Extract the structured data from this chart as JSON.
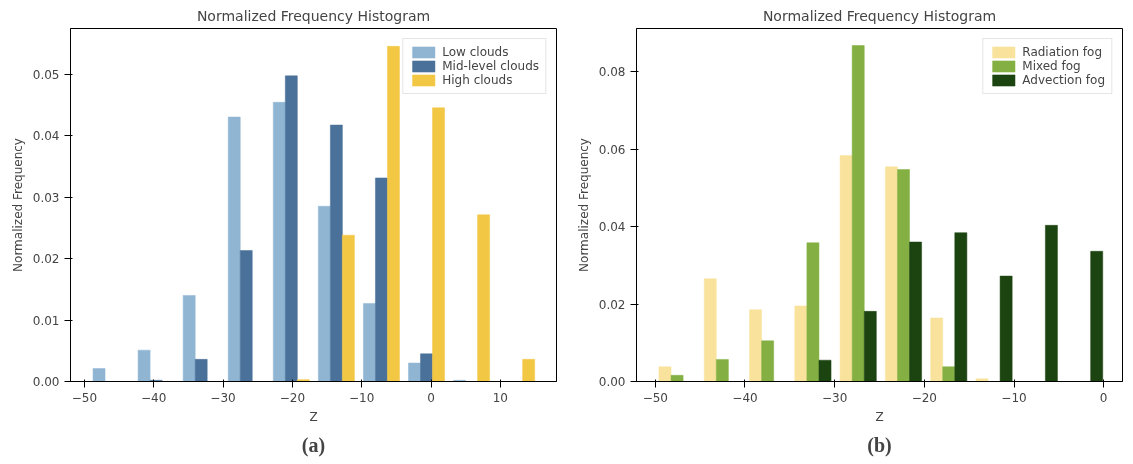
{
  "chart_data": [
    {
      "type": "histogram",
      "title": "Normalized Frequency Histogram",
      "xlabel": "Z",
      "ylabel": "Normalized Frequency",
      "annotations": [
        "(a)"
      ],
      "bins": [
        -49.4,
        -42.9,
        -36.4,
        -29.9,
        -23.4,
        -16.9,
        -10.4,
        -3.9,
        2.6,
        9.1,
        15.6
      ],
      "series": [
        {
          "name": "Low clouds",
          "color": "#8fb5d3",
          "values": [
            0.0021,
            0.0051,
            0.014,
            0.043,
            0.0454,
            0.0285,
            0.0127,
            0.003,
            0.0002,
            0
          ]
        },
        {
          "name": "Mid-level clouds",
          "color": "#4a7199",
          "values": [
            0,
            0.0002,
            0.0036,
            0.0213,
            0.0497,
            0.0417,
            0.0331,
            0.0045,
            0,
            0
          ]
        },
        {
          "name": "High clouds",
          "color": "#f2c744",
          "values": [
            0,
            0,
            0,
            0,
            0.0003,
            0.0238,
            0.0545,
            0.0445,
            0.0271,
            0.0036
          ]
        }
      ],
      "xlim": [
        -52.0,
        18.1
      ],
      "ylim": [
        0,
        0.0574
      ],
      "xticks": [
        {
          "value": -50,
          "label": "−50"
        },
        {
          "value": -40,
          "label": "−40"
        },
        {
          "value": -30,
          "label": "−30"
        },
        {
          "value": -20,
          "label": "−20"
        },
        {
          "value": -10,
          "label": "−10"
        },
        0,
        10
      ],
      "yticks": [
        {
          "value": 0,
          "label": "0.00"
        },
        0.01,
        0.02,
        0.03,
        0.04,
        0.05
      ],
      "grid": false,
      "legend": "top right"
    },
    {
      "type": "histogram",
      "title": "Normalized Frequency Histogram",
      "xlabel": "Z",
      "ylabel": "Normalized Frequency",
      "annotations": [
        "(b)"
      ],
      "bins": [
        -50.1,
        -45.05,
        -40.0,
        -34.95,
        -29.9,
        -24.85,
        -19.8,
        -14.75,
        -9.7,
        -4.65,
        0.4
      ],
      "series": [
        {
          "name": "Radiation fog",
          "color": "#f9e39c",
          "values": [
            0.0038,
            0.0265,
            0.0185,
            0.0195,
            0.0583,
            0.0554,
            0.0164,
            0.0007,
            0,
            0
          ]
        },
        {
          "name": "Mixed fog",
          "color": "#84b043",
          "values": [
            0.0016,
            0.0057,
            0.0105,
            0.0358,
            0.0867,
            0.0547,
            0.0038,
            0,
            0,
            0
          ]
        },
        {
          "name": "Advection fog",
          "color": "#1c4410",
          "values": [
            0,
            0,
            0,
            0.0055,
            0.0181,
            0.036,
            0.0384,
            0.0272,
            0.0403,
            0.0336
          ]
        }
      ],
      "xlim": [
        -52.1,
        2.1
      ],
      "ylim": [
        0,
        0.0911
      ],
      "xticks": [
        {
          "value": -50,
          "label": "−50"
        },
        {
          "value": -40,
          "label": "−40"
        },
        {
          "value": -30,
          "label": "−30"
        },
        {
          "value": -20,
          "label": "−20"
        },
        {
          "value": -10,
          "label": "−10"
        },
        0
      ],
      "yticks": [
        {
          "value": 0,
          "label": "0.00"
        },
        {
          "value": 0.02,
          "label": "0.02"
        },
        {
          "value": 0.04,
          "label": "0.04"
        },
        {
          "value": 0.06,
          "label": "0.06"
        },
        {
          "value": 0.08,
          "label": "0.08"
        }
      ],
      "grid": false,
      "legend": "top right"
    }
  ]
}
